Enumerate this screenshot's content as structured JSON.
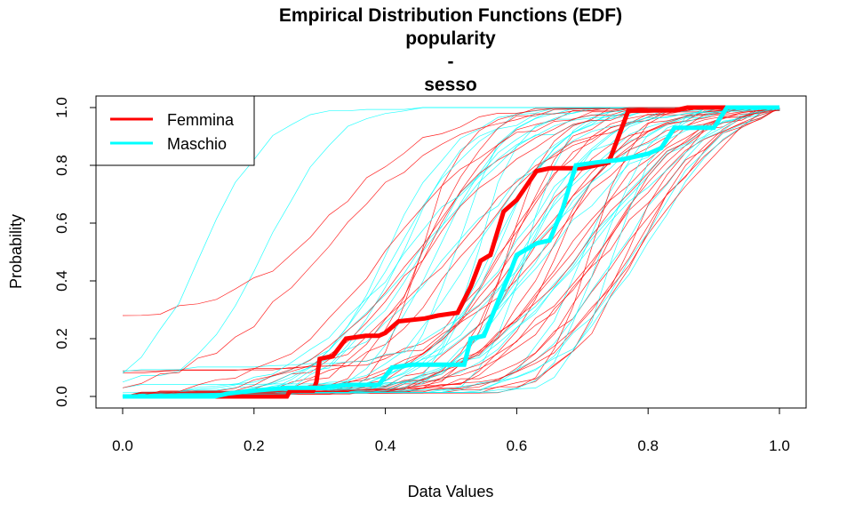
{
  "chart_data": {
    "type": "line",
    "title": "Empirical Distribution Functions (EDF)",
    "title_lines": [
      "Empirical Distribution Functions (EDF)",
      "popularity",
      "-",
      "sesso"
    ],
    "xlabel": "Data Values",
    "ylabel": "Probability",
    "xlim": [
      0,
      1
    ],
    "ylim": [
      0,
      1
    ],
    "x_ticks": [
      "0.0",
      "0.2",
      "0.4",
      "0.6",
      "0.8",
      "1.0"
    ],
    "y_ticks": [
      "0.0",
      "0.2",
      "0.4",
      "0.6",
      "0.8",
      "1.0"
    ],
    "grid": false,
    "legend_position": "top-left",
    "legend": [
      {
        "name": "Femmina",
        "color": "#ff0000"
      },
      {
        "name": "Maschio",
        "color": "#00ffff"
      }
    ],
    "series": [
      {
        "name": "Femmina",
        "color": "#ff0000",
        "values": [
          [
            0,
            0
          ],
          [
            0.15,
            0
          ],
          [
            0.25,
            0
          ],
          [
            0.255,
            0.02
          ],
          [
            0.29,
            0.02
          ],
          [
            0.295,
            0.05
          ],
          [
            0.3,
            0.13
          ],
          [
            0.32,
            0.14
          ],
          [
            0.34,
            0.2
          ],
          [
            0.37,
            0.21
          ],
          [
            0.39,
            0.21
          ],
          [
            0.4,
            0.22
          ],
          [
            0.42,
            0.26
          ],
          [
            0.46,
            0.27
          ],
          [
            0.48,
            0.28
          ],
          [
            0.51,
            0.29
          ],
          [
            0.53,
            0.38
          ],
          [
            0.545,
            0.47
          ],
          [
            0.56,
            0.49
          ],
          [
            0.58,
            0.64
          ],
          [
            0.6,
            0.68
          ],
          [
            0.63,
            0.78
          ],
          [
            0.65,
            0.79
          ],
          [
            0.7,
            0.79
          ],
          [
            0.72,
            0.8
          ],
          [
            0.74,
            0.81
          ],
          [
            0.77,
            0.99
          ],
          [
            0.84,
            0.99
          ],
          [
            0.86,
            1
          ],
          [
            1,
            1
          ]
        ]
      },
      {
        "name": "Maschio",
        "color": "#00ffff",
        "values": [
          [
            0,
            0
          ],
          [
            0.14,
            0
          ],
          [
            0.16,
            0.01
          ],
          [
            0.2,
            0.02
          ],
          [
            0.25,
            0.03
          ],
          [
            0.3,
            0.03
          ],
          [
            0.34,
            0.04
          ],
          [
            0.37,
            0.04
          ],
          [
            0.39,
            0.04
          ],
          [
            0.41,
            0.1
          ],
          [
            0.44,
            0.11
          ],
          [
            0.52,
            0.11
          ],
          [
            0.53,
            0.2
          ],
          [
            0.55,
            0.21
          ],
          [
            0.57,
            0.32
          ],
          [
            0.59,
            0.43
          ],
          [
            0.6,
            0.49
          ],
          [
            0.63,
            0.53
          ],
          [
            0.65,
            0.54
          ],
          [
            0.67,
            0.65
          ],
          [
            0.69,
            0.8
          ],
          [
            0.72,
            0.81
          ],
          [
            0.76,
            0.82
          ],
          [
            0.8,
            0.84
          ],
          [
            0.82,
            0.86
          ],
          [
            0.84,
            0.93
          ],
          [
            0.9,
            0.93
          ],
          [
            0.92,
            1
          ],
          [
            1,
            1
          ]
        ]
      }
    ]
  }
}
